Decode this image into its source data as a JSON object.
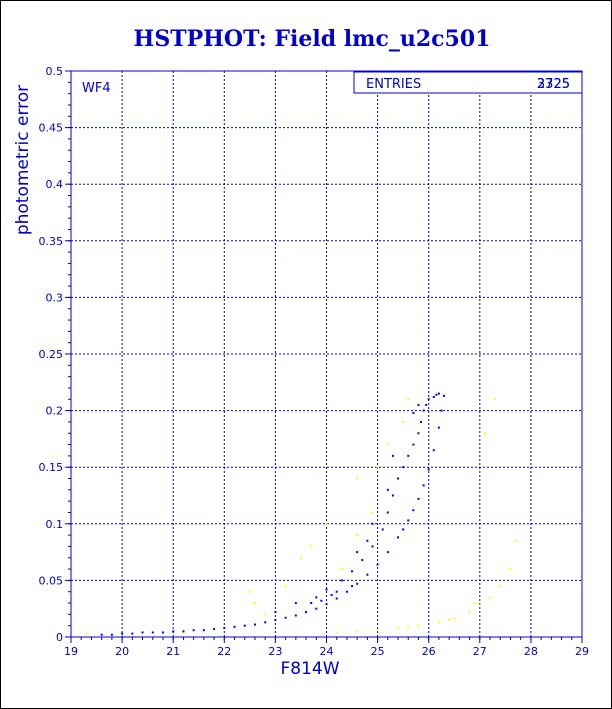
{
  "chart_data": {
    "type": "scatter",
    "title": "HSTPHOT: Field lmc_u2c501",
    "xlabel": "F814W",
    "ylabel": "photometric error",
    "xlim": [
      19,
      29
    ],
    "ylim": [
      0,
      0.5
    ],
    "x_ticks": [
      "19",
      "20",
      "21",
      "22",
      "23",
      "24",
      "25",
      "26",
      "27",
      "28",
      "29"
    ],
    "y_ticks": [
      "0",
      "0.05",
      "0.1",
      "0.15",
      "0.2",
      "0.25",
      "0.3",
      "0.35",
      "0.4",
      "0.45",
      "0.5"
    ],
    "grid": true,
    "panel_label": "WF4",
    "stats_box": {
      "label": "ENTRIES",
      "value": "2725",
      "value_overprint": "3325"
    },
    "colors": {
      "axes": "#0000cc",
      "main_sequence": "#0000ff",
      "secondary": "#ffff00"
    },
    "series": [
      {
        "color": "#0000ff",
        "points": [
          [
            19.6,
            0.002
          ],
          [
            19.8,
            0.002
          ],
          [
            20.0,
            0.003
          ],
          [
            20.2,
            0.003
          ],
          [
            20.4,
            0.004
          ],
          [
            20.6,
            0.004
          ],
          [
            20.8,
            0.004
          ],
          [
            21.0,
            0.005
          ],
          [
            21.2,
            0.005
          ],
          [
            21.4,
            0.006
          ],
          [
            21.6,
            0.006
          ],
          [
            21.8,
            0.007
          ],
          [
            22.0,
            0.008
          ],
          [
            22.2,
            0.009
          ],
          [
            22.4,
            0.01
          ],
          [
            22.6,
            0.011
          ],
          [
            22.8,
            0.013
          ],
          [
            23.0,
            0.015
          ],
          [
            23.2,
            0.017
          ],
          [
            23.4,
            0.019
          ],
          [
            23.6,
            0.022
          ],
          [
            23.8,
            0.025
          ],
          [
            24.0,
            0.029
          ],
          [
            24.2,
            0.034
          ],
          [
            24.4,
            0.04
          ],
          [
            24.6,
            0.047
          ],
          [
            24.8,
            0.055
          ],
          [
            25.0,
            0.064
          ],
          [
            25.2,
            0.075
          ],
          [
            25.4,
            0.088
          ],
          [
            25.5,
            0.095
          ],
          [
            25.6,
            0.103
          ],
          [
            25.7,
            0.112
          ],
          [
            25.8,
            0.122
          ],
          [
            25.9,
            0.134
          ],
          [
            26.0,
            0.148
          ],
          [
            26.1,
            0.165
          ],
          [
            26.2,
            0.185
          ],
          [
            26.25,
            0.2
          ],
          [
            26.3,
            0.213
          ],
          [
            23.0,
            0.022
          ],
          [
            23.4,
            0.03
          ],
          [
            23.8,
            0.035
          ],
          [
            24.0,
            0.042
          ],
          [
            24.3,
            0.05
          ],
          [
            24.5,
            0.058
          ],
          [
            24.7,
            0.068
          ],
          [
            24.9,
            0.08
          ],
          [
            25.1,
            0.095
          ],
          [
            25.2,
            0.11
          ],
          [
            25.3,
            0.125
          ],
          [
            25.4,
            0.14
          ],
          [
            25.5,
            0.15
          ],
          [
            25.6,
            0.16
          ],
          [
            25.7,
            0.17
          ],
          [
            25.8,
            0.18
          ],
          [
            25.85,
            0.19
          ],
          [
            25.9,
            0.2
          ],
          [
            25.95,
            0.205
          ],
          [
            26.0,
            0.21
          ],
          [
            25.3,
            0.16
          ],
          [
            25.2,
            0.13
          ],
          [
            24.9,
            0.1
          ],
          [
            24.8,
            0.085
          ],
          [
            24.6,
            0.075
          ],
          [
            26.1,
            0.212
          ],
          [
            26.15,
            0.214
          ],
          [
            26.2,
            0.215
          ],
          [
            25.8,
            0.205
          ],
          [
            25.7,
            0.198
          ],
          [
            24.2,
            0.04
          ],
          [
            24.5,
            0.045
          ],
          [
            24.1,
            0.037
          ],
          [
            23.9,
            0.032
          ],
          [
            23.7,
            0.03
          ]
        ]
      },
      {
        "color": "#ffff00",
        "points": [
          [
            19.3,
            0.003
          ],
          [
            20.0,
            0.002
          ],
          [
            21.2,
            0.004
          ],
          [
            22.5,
            0.04
          ],
          [
            23.2,
            0.045
          ],
          [
            23.5,
            0.07
          ],
          [
            23.7,
            0.08
          ],
          [
            24.0,
            0.1
          ],
          [
            24.6,
            0.09
          ],
          [
            24.9,
            0.11
          ],
          [
            25.0,
            0.15
          ],
          [
            25.2,
            0.17
          ],
          [
            25.5,
            0.19
          ],
          [
            25.6,
            0.21
          ],
          [
            24.6,
            0.14
          ],
          [
            24.3,
            0.06
          ],
          [
            22.8,
            0.02
          ],
          [
            22.6,
            0.03
          ],
          [
            24.2,
            0.004
          ],
          [
            24.6,
            0.005
          ],
          [
            25.0,
            0.006
          ],
          [
            25.4,
            0.008
          ],
          [
            25.8,
            0.01
          ],
          [
            26.2,
            0.013
          ],
          [
            26.5,
            0.016
          ],
          [
            26.8,
            0.022
          ],
          [
            27.0,
            0.028
          ],
          [
            27.2,
            0.035
          ],
          [
            27.4,
            0.045
          ],
          [
            27.6,
            0.06
          ],
          [
            27.7,
            0.085
          ],
          [
            27.3,
            0.21
          ],
          [
            27.1,
            0.18
          ],
          [
            26.9,
            0.03
          ],
          [
            26.4,
            0.015
          ],
          [
            25.6,
            0.009
          ]
        ]
      }
    ]
  }
}
